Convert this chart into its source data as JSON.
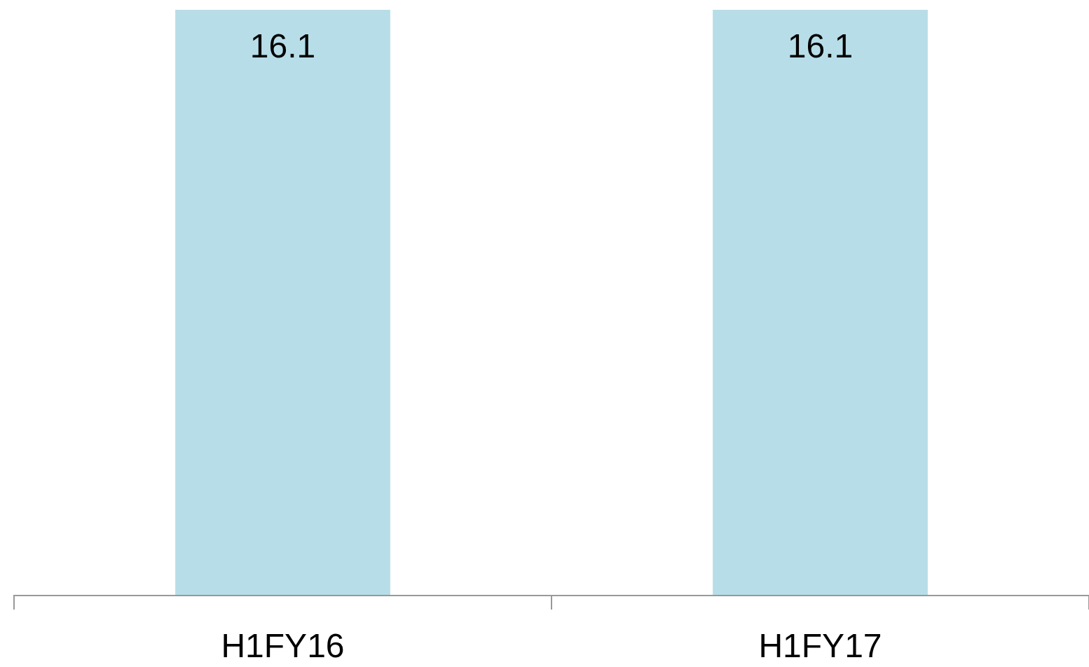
{
  "chart_data": {
    "type": "bar",
    "categories": [
      "H1FY16",
      "H1FY17"
    ],
    "values": [
      16.1,
      16.1
    ],
    "color": "#b7dde8",
    "data_labels": true
  }
}
